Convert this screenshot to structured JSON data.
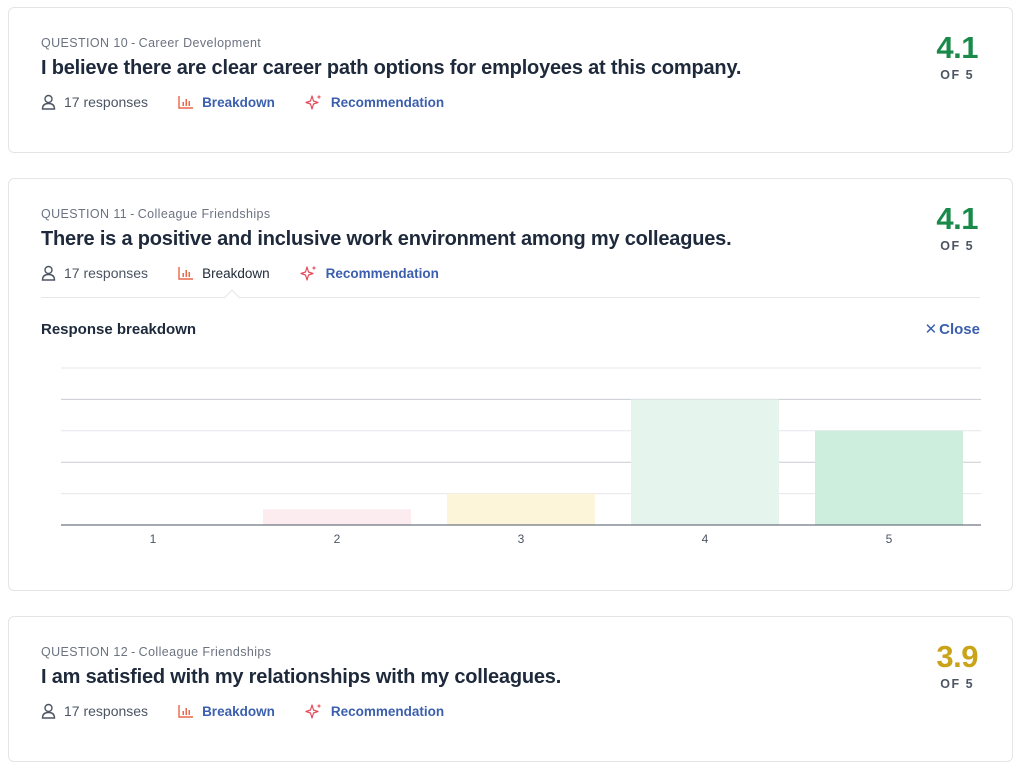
{
  "questions": [
    {
      "number_label": "QUESTION 10",
      "category": "Career Development",
      "title": "I believe there are clear career path options for employees at this company.",
      "score": "4.1",
      "score_suffix": "OF 5",
      "score_color": "#1a8a4a",
      "responses": "17 responses",
      "breakdown_label": "Breakdown",
      "recommendation_label": "Recommendation"
    },
    {
      "number_label": "QUESTION 11",
      "category": "Colleague Friendships",
      "title": "There is a positive and inclusive work environment among my colleagues.",
      "score": "4.1",
      "score_suffix": "OF 5",
      "score_color": "#1a8a4a",
      "responses": "17 responses",
      "breakdown_label": "Breakdown",
      "recommendation_label": "Recommendation"
    },
    {
      "number_label": "QUESTION 12",
      "category": "Colleague Friendships",
      "title": "I am satisfied with my relationships with my colleagues.",
      "score": "3.9",
      "score_suffix": "OF 5",
      "score_color": "#c9a418",
      "responses": "17 responses",
      "breakdown_label": "Breakdown",
      "recommendation_label": "Recommendation"
    }
  ],
  "breakdown": {
    "title": "Response breakdown",
    "close_label": "Close"
  },
  "chart_data": {
    "type": "bar",
    "categories": [
      "1",
      "2",
      "3",
      "4",
      "5"
    ],
    "values": [
      0,
      1,
      2,
      8,
      6
    ],
    "ylim": [
      0,
      10
    ],
    "grid": true,
    "colors": [
      "#fdecef",
      "#fdecef",
      "#fdf5d9",
      "#e5f4ec",
      "#cdeedd"
    ]
  },
  "colors": {
    "link": "#3b5fad",
    "score_good": "#1a8a4a",
    "score_mid": "#c9a418",
    "breakdown_icon": "#e8664a",
    "recommendation_icon": "#e24a5b"
  }
}
